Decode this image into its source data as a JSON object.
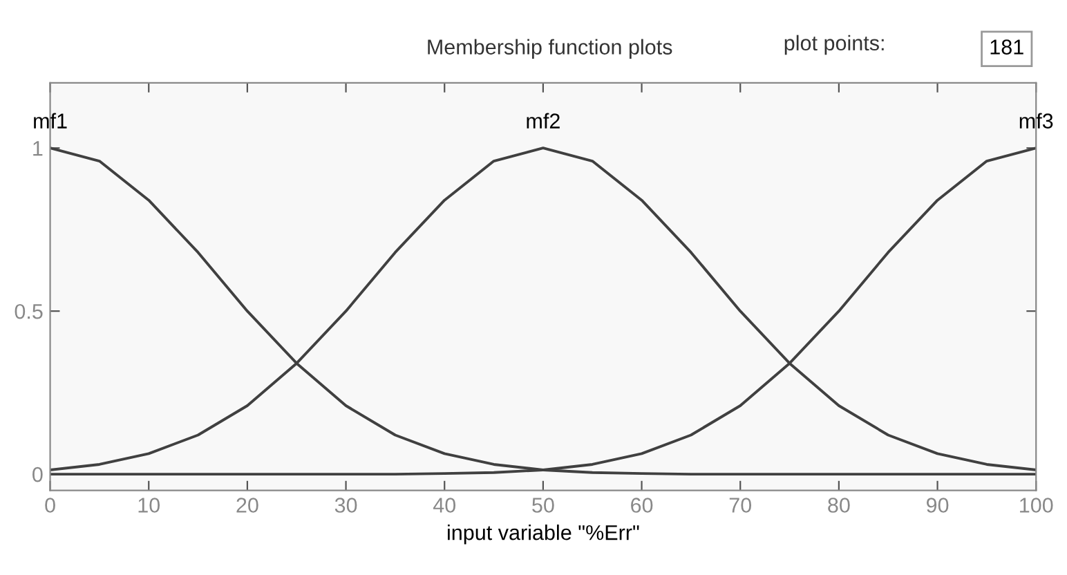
{
  "chart_data": {
    "type": "line",
    "title": "Membership function plots",
    "xlabel": "input variable \"%Err\"",
    "x": [
      0,
      5,
      10,
      15,
      20,
      25,
      30,
      35,
      40,
      45,
      50,
      55,
      60,
      65,
      70,
      75,
      80,
      85,
      90,
      95,
      100
    ],
    "series": [
      {
        "color": "#404040",
        "values": [
          1,
          0.96,
          0.84,
          0.68,
          0.5,
          0.34,
          0.21,
          0.12,
          0.063,
          0.03,
          0.013,
          0.005,
          0.002,
          0,
          0,
          0,
          0,
          0,
          0,
          0,
          0
        ]
      },
      {
        "color": "#404040",
        "values": [
          0.013,
          0.03,
          0.063,
          0.12,
          0.21,
          0.34,
          0.5,
          0.68,
          0.84,
          0.96,
          1,
          0.96,
          0.84,
          0.68,
          0.5,
          0.34,
          0.21,
          0.12,
          0.063,
          0.03,
          0.013
        ]
      },
      {
        "color": "#404040",
        "values": [
          0,
          0,
          0,
          0,
          0,
          0,
          0,
          0,
          0.002,
          0.005,
          0.013,
          0.03,
          0.063,
          0.12,
          0.21,
          0.34,
          0.5,
          0.68,
          0.84,
          0.96,
          1
        ]
      }
    ],
    "xlim": [
      0,
      100
    ],
    "ylim": [
      -0.05,
      1.2
    ],
    "xticks": [
      0,
      10,
      20,
      30,
      40,
      50,
      60,
      70,
      80,
      90,
      100
    ],
    "yticks": [
      0,
      {
        "value": 0.5,
        "label": "0.5"
      },
      1
    ],
    "marker": "none",
    "line_style": "solid",
    "annotations": [
      {
        "text": "mf1",
        "x": 0,
        "y": 1
      },
      {
        "text": "mf2",
        "x": 50,
        "y": 1
      },
      {
        "text": "mf3",
        "x": 100,
        "y": 1
      },
      "plot points:",
      "181"
    ]
  }
}
